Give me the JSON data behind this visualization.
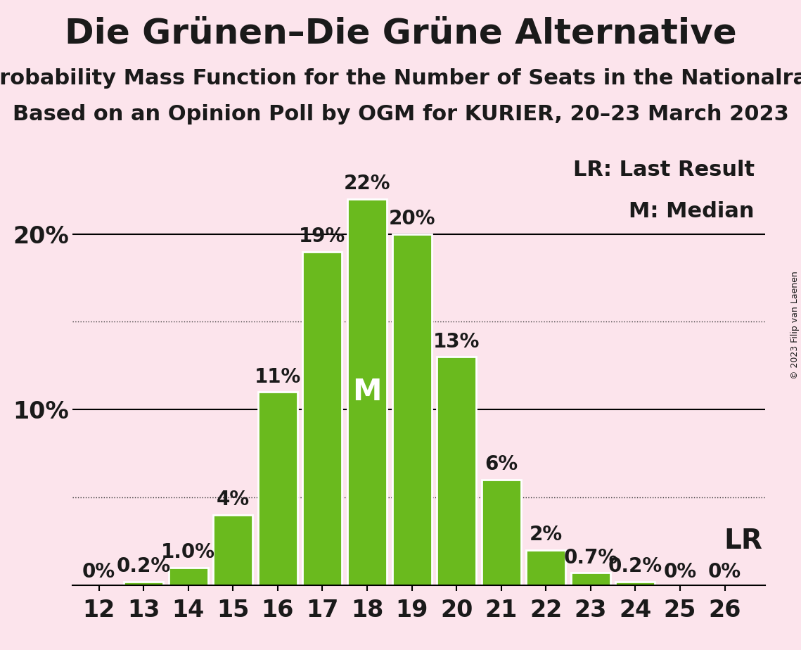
{
  "title": "Die Grünen–Die Grüne Alternative",
  "subtitle1": "Probability Mass Function for the Number of Seats in the Nationalrat",
  "subtitle2": "Based on an Opinion Poll by OGM for KURIER, 20–23 March 2023",
  "copyright": "© 2023 Filip van Laenen",
  "seats": [
    12,
    13,
    14,
    15,
    16,
    17,
    18,
    19,
    20,
    21,
    22,
    23,
    24,
    25,
    26
  ],
  "probabilities": [
    0.0,
    0.2,
    1.0,
    4.0,
    11.0,
    19.0,
    22.0,
    20.0,
    13.0,
    6.0,
    2.0,
    0.7,
    0.2,
    0.0,
    0.0
  ],
  "prob_labels": [
    "0%",
    "0.2%",
    "1.0%",
    "4%",
    "11%",
    "19%",
    "22%",
    "20%",
    "13%",
    "6%",
    "2%",
    "0.7%",
    "0.2%",
    "0%",
    "0%"
  ],
  "bar_color": "#6aba1e",
  "bar_edge_color": "#ffffff",
  "background_color": "#fce4ec",
  "median_seat": 18,
  "last_result_seat": 26,
  "ytick_solid": [
    10,
    20
  ],
  "ytick_dotted": [
    5,
    15
  ],
  "ylim": [
    0,
    25
  ],
  "title_fontsize": 36,
  "subtitle_fontsize": 22,
  "tick_fontsize": 24,
  "annotation_fontsize": 20,
  "legend_fontsize": 22,
  "median_label_fontsize": 30
}
